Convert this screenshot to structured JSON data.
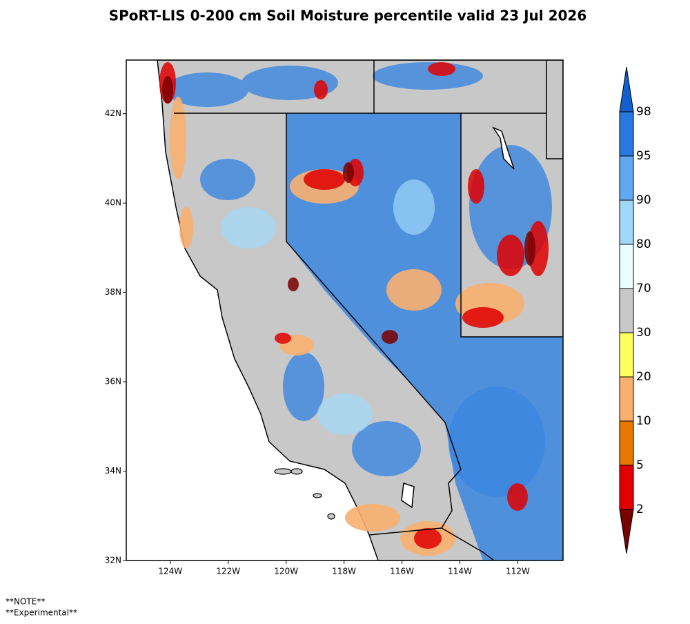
{
  "title": "SPoRT-LIS 0-200 cm Soil Moisture percentile valid 23 Jul 2026",
  "map": {
    "lonlim": [
      -125.52,
      -110.44
    ],
    "latlim": [
      32,
      43.2
    ],
    "lat_ticks": [
      {
        "value": 32,
        "label": "32N"
      },
      {
        "value": 34,
        "label": "34N"
      },
      {
        "value": 36,
        "label": "36N"
      },
      {
        "value": 38,
        "label": "38N"
      },
      {
        "value": 40,
        "label": "40N"
      },
      {
        "value": 42,
        "label": "42N"
      }
    ],
    "lon_ticks": [
      {
        "value": -124,
        "label": "124W"
      },
      {
        "value": -122,
        "label": "122W"
      },
      {
        "value": -120,
        "label": "120W"
      },
      {
        "value": -118,
        "label": "118W"
      },
      {
        "value": -116,
        "label": "116W"
      },
      {
        "value": -114,
        "label": "114W"
      },
      {
        "value": -112,
        "label": "112W"
      }
    ]
  },
  "colorbar": {
    "levels": [
      2,
      5,
      10,
      20,
      30,
      70,
      80,
      90,
      95,
      98
    ],
    "colors": [
      "#7a0000",
      "#e00000",
      "#e87800",
      "#f8b070",
      "#ffff60",
      "#c8c8c8",
      "#e8ffff",
      "#a0d8f8",
      "#60a8f0",
      "#2878e0",
      "#1060d0"
    ]
  },
  "notes": [
    "**NOTE**",
    "**Experimental**"
  ]
}
